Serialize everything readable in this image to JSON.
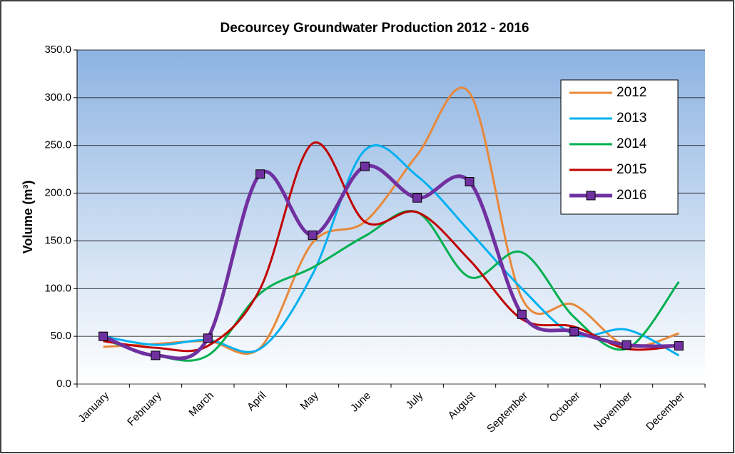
{
  "chart_data": {
    "type": "line",
    "title": "Decourcey Groundwater Production 2012 - 2016",
    "y_label": "Volume (m³)",
    "categories": [
      "January",
      "February",
      "March",
      "April",
      "May",
      "June",
      "July",
      "August",
      "September",
      "October",
      "November",
      "December"
    ],
    "series": [
      {
        "name": "2012",
        "color": "#e8883a",
        "values": [
          39,
          42,
          45,
          38,
          148,
          170,
          240,
          305,
          90,
          83,
          40,
          53
        ]
      },
      {
        "name": "2013",
        "color": "#00b0f0",
        "values": [
          50,
          41,
          46,
          37,
          115,
          245,
          218,
          160,
          100,
          52,
          57,
          30
        ]
      },
      {
        "name": "2014",
        "color": "#00b050",
        "values": [
          47,
          30,
          30,
          95,
          122,
          155,
          180,
          112,
          138,
          70,
          37,
          107
        ]
      },
      {
        "name": "2015",
        "color": "#c00000",
        "values": [
          45,
          38,
          40,
          100,
          252,
          170,
          180,
          130,
          68,
          60,
          37,
          40
        ]
      },
      {
        "name": "2016",
        "color": "#7030a0",
        "marker_color": "#7030a0",
        "values": [
          50,
          30,
          48,
          220,
          156,
          228,
          195,
          212,
          73,
          55,
          41,
          40
        ]
      }
    ],
    "ylim": [
      0,
      350
    ],
    "yticks": [
      {
        "value": 0,
        "label": "0.0"
      },
      {
        "value": 50,
        "label": "50.0"
      },
      {
        "value": 100,
        "label": "100.0"
      },
      {
        "value": 150,
        "label": "150.0"
      },
      {
        "value": 200,
        "label": "200.0"
      },
      {
        "value": 250,
        "label": "250.0"
      },
      {
        "value": 300,
        "label": "300.0"
      },
      {
        "value": 350,
        "label": "350.0"
      }
    ],
    "grid": true,
    "legend": "upper right"
  }
}
